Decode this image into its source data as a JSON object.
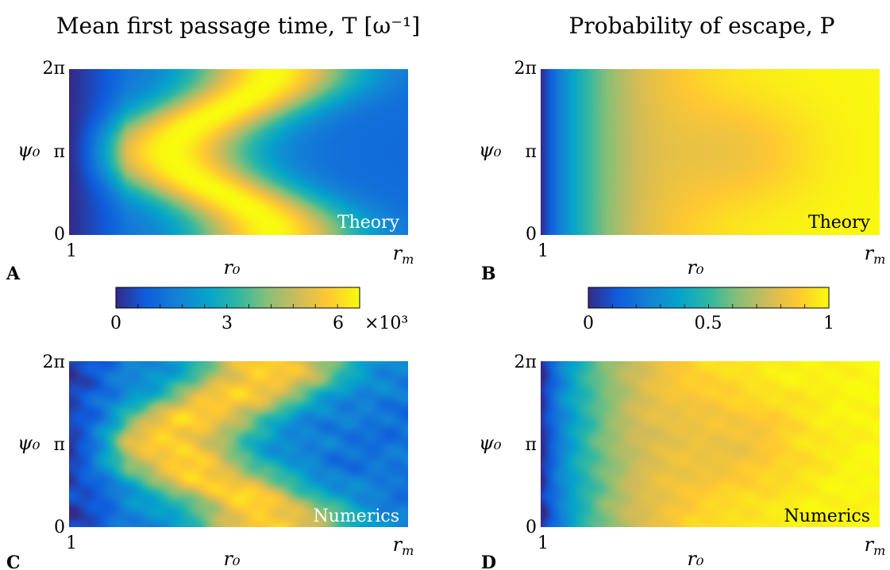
{
  "chart_data": [
    {
      "type": "heatmap",
      "panel_label": "A",
      "column_title": "Mean first passage time, T [ω⁻¹]",
      "quantity": "T",
      "xlabel": "r₀",
      "ylabel": "ψ₀",
      "x_ticks": [
        "1",
        "r_m"
      ],
      "y_ticks": [
        "0",
        "π",
        "2π"
      ],
      "annotation": "Theory",
      "colorscale": "parula",
      "clim": [
        0,
        6600
      ],
      "colorbar": {
        "ticks": [
          0,
          3,
          6
        ],
        "tick_labels": [
          "0",
          "3",
          "6"
        ],
        "multiplier": "×10³"
      },
      "pattern": "theory_time"
    },
    {
      "type": "heatmap",
      "panel_label": "B",
      "column_title": "Probability of escape, P",
      "quantity": "P",
      "xlabel": "r₀",
      "ylabel": "ψ₀",
      "x_ticks": [
        "1",
        "r_m"
      ],
      "y_ticks": [
        "0",
        "π",
        "2π"
      ],
      "annotation": "Theory",
      "colorscale": "parula",
      "clim": [
        0,
        1
      ],
      "colorbar": {
        "ticks": [
          0,
          0.5,
          1
        ],
        "tick_labels": [
          "0",
          "0.5",
          "1"
        ],
        "multiplier": ""
      },
      "pattern": "theory_prob"
    },
    {
      "type": "heatmap",
      "panel_label": "C",
      "quantity": "T",
      "xlabel": "r₀",
      "ylabel": "ψ₀",
      "x_ticks": [
        "1",
        "r_m"
      ],
      "y_ticks": [
        "0",
        "π",
        "2π"
      ],
      "annotation": "Numerics",
      "colorscale": "parula",
      "clim": [
        0,
        6600
      ],
      "pattern": "numerics_time"
    },
    {
      "type": "heatmap",
      "panel_label": "D",
      "quantity": "P",
      "xlabel": "r₀",
      "ylabel": "ψ₀",
      "x_ticks": [
        "1",
        "r_m"
      ],
      "y_ticks": [
        "0",
        "π",
        "2π"
      ],
      "annotation": "Numerics",
      "colorscale": "parula",
      "clim": [
        0,
        1
      ],
      "pattern": "numerics_prob"
    }
  ]
}
